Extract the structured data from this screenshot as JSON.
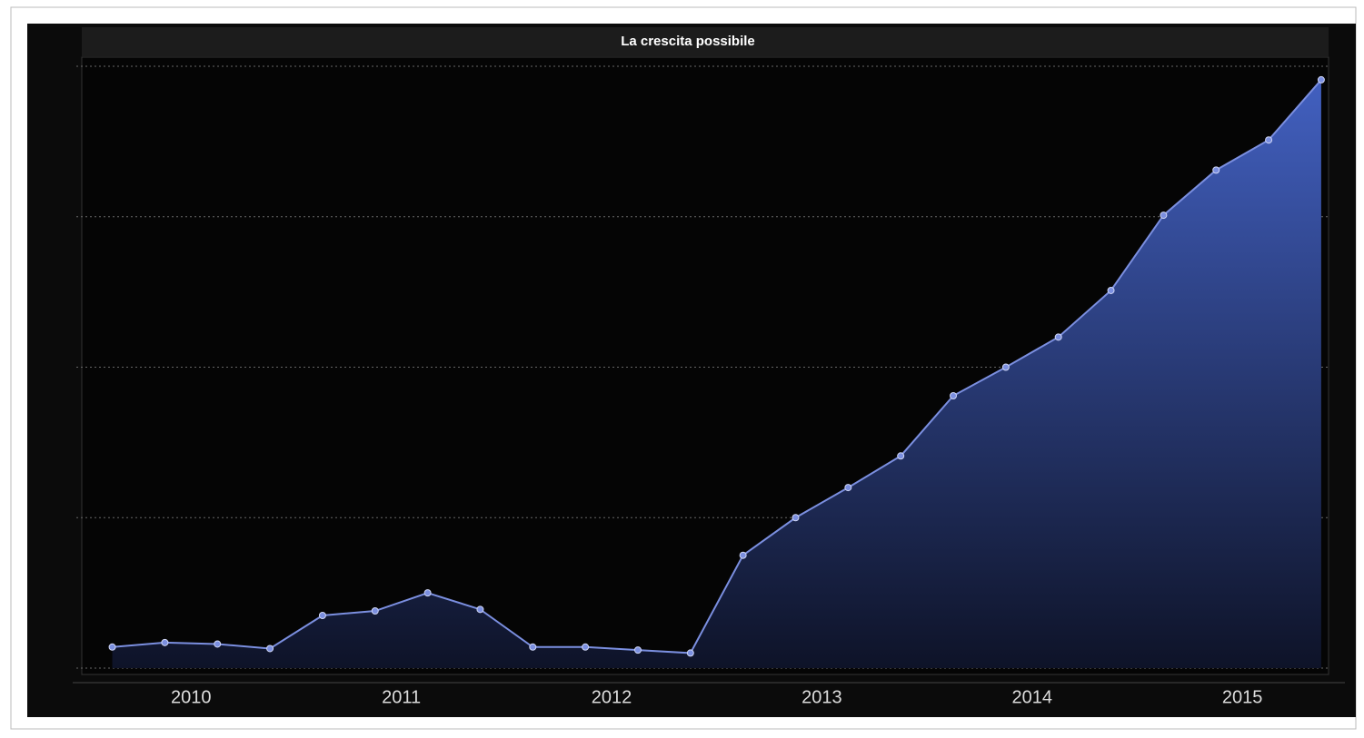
{
  "chart_data": {
    "type": "area",
    "title": "La crescita possibile",
    "x": [
      2010.125,
      2010.375,
      2010.625,
      2010.875,
      2011.125,
      2011.375,
      2011.625,
      2011.875,
      2012.125,
      2012.375,
      2012.625,
      2012.875,
      2013.125,
      2013.375,
      2013.625,
      2013.875,
      2014.125,
      2014.375,
      2014.625,
      2014.875,
      2015.125,
      2015.375,
      2015.625,
      2015.875
    ],
    "series": [
      {
        "color": "#7b8fe0",
        "values": [
          0.14,
          0.17,
          0.16,
          0.13,
          0.35,
          0.38,
          0.5,
          0.39,
          0.14,
          0.14,
          0.12,
          0.1,
          0.75,
          1.0,
          1.2,
          1.41,
          1.81,
          2.0,
          2.2,
          2.51,
          3.01,
          3.31,
          3.51,
          3.91
        ]
      }
    ],
    "xlim": [
      2009.98,
      2015.91
    ],
    "xticks": [
      {
        "value": 2010.5,
        "label": "2010"
      },
      {
        "value": 2011.5,
        "label": "2011"
      },
      {
        "value": 2012.5,
        "label": "2012"
      },
      {
        "value": 2013.5,
        "label": "2013"
      },
      {
        "value": 2014.5,
        "label": "2014"
      },
      {
        "value": 2015.5,
        "label": "2015"
      }
    ],
    "ylim": [
      0,
      4
    ],
    "yticks": [
      0,
      1,
      2,
      3,
      4
    ],
    "grid": true
  }
}
